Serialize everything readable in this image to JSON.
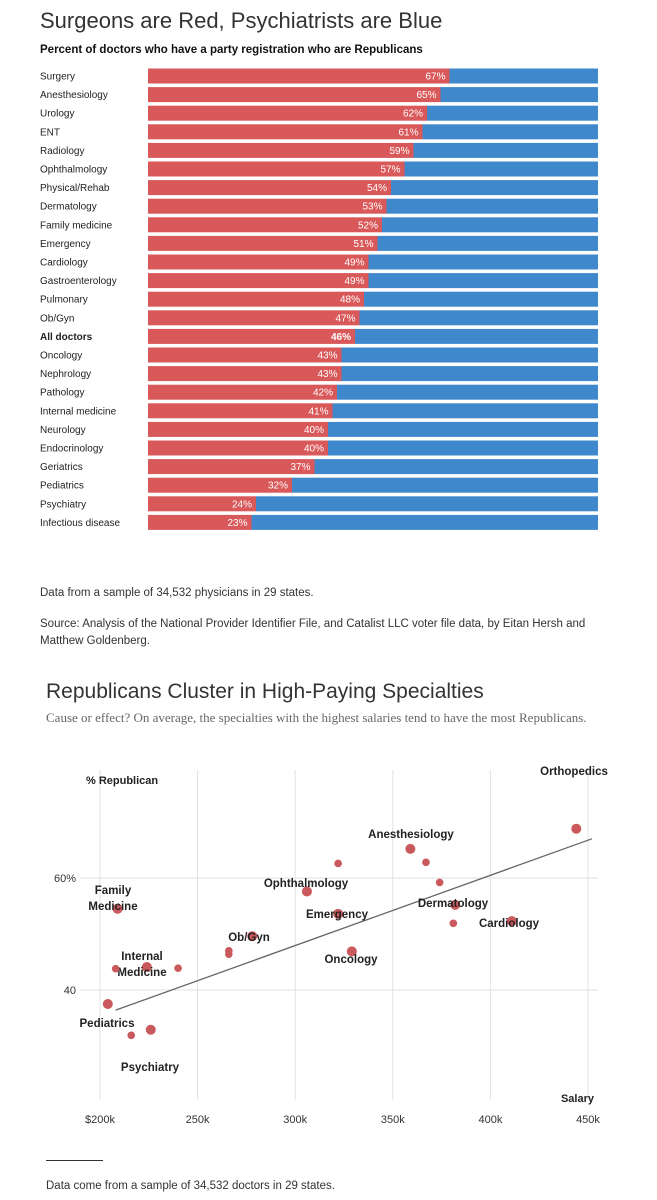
{
  "chart1": {
    "title": "Surgeons are Red, Psychiatrists are Blue",
    "subtitle": "Percent of doctors who have a party registration who are Republicans",
    "colors": {
      "republican": "#d9595a",
      "democrat": "#3f88cb",
      "label": "#ffffff"
    },
    "notes": [
      "Data from a sample of 34,532 physicians in 29 states.",
      "Source: Analysis of the National Provider Identifier File, and Catalist LLC voter file data, by Eitan Hersh and Matthew Goldenberg."
    ]
  },
  "chart2": {
    "title": "Republicans Cluster in High-Paying Specialties",
    "subtitle": "Cause or effect? On average, the specialties with the highest salaries tend to have the most Republicans.",
    "note": "Data come from a sample of 34,532 doctors in 29 states.",
    "colors": {
      "point": "#c9595c",
      "trend": "#666666",
      "grid": "#e2e2e2"
    }
  },
  "chart_data": [
    {
      "type": "bar",
      "stacked": true,
      "title": "Surgeons are Red, Psychiatrists are Blue",
      "subtitle": "Percent of doctors who have a party registration who are Republicans",
      "categories": [
        "Surgery",
        "Anesthesiology",
        "Urology",
        "ENT",
        "Radiology",
        "Ophthalmology",
        "Physical/Rehab",
        "Dermatology",
        "Family medicine",
        "Emergency",
        "Cardiology",
        "Gastroenterology",
        "Pulmonary",
        "Ob/Gyn",
        "All doctors",
        "Oncology",
        "Nephrology",
        "Pathology",
        "Internal medicine",
        "Neurology",
        "Endocrinology",
        "Geriatrics",
        "Pediatrics",
        "Psychiatry",
        "Infectious disease"
      ],
      "values": [
        67,
        65,
        62,
        61,
        59,
        57,
        54,
        53,
        52,
        51,
        49,
        49,
        48,
        47,
        46,
        43,
        43,
        42,
        41,
        40,
        40,
        37,
        32,
        24,
        23
      ],
      "value_labels": [
        "67%",
        "65%",
        "62%",
        "61%",
        "59%",
        "57%",
        "54%",
        "53%",
        "52%",
        "51%",
        "49%",
        "49%",
        "48%",
        "47%",
        "46%",
        "43%",
        "43%",
        "42%",
        "41%",
        "40%",
        "40%",
        "37%",
        "32%",
        "24%",
        "23%"
      ],
      "highlight": "All doctors",
      "xlim": [
        0,
        100
      ]
    },
    {
      "type": "scatter",
      "title": "Republicans Cluster in High-Paying Specialties",
      "subtitle": "Cause or effect? On average, the specialties with the highest salaries tend to have the most Republicans.",
      "xlabel": "Salary",
      "ylabel": "% Republican",
      "xlim": [
        200000,
        450000
      ],
      "ylim": [
        30,
        69
      ],
      "x_ticks": [
        200000,
        250000,
        300000,
        350000,
        400000,
        450000
      ],
      "x_tick_labels": [
        "$200k",
        "250k",
        "300k",
        "350k",
        "400k",
        "450k"
      ],
      "y_ticks": [
        40,
        60
      ],
      "y_tick_labels": [
        "40",
        "60%"
      ],
      "grid": true,
      "trend_line": [
        [
          208000,
          36.4
        ],
        [
          452000,
          67.0
        ]
      ],
      "points": [
        {
          "x": 444000,
          "y": 68.8,
          "label": "Orthopedics"
        },
        {
          "x": 359000,
          "y": 65.2,
          "label": "Anesthesiology"
        },
        {
          "x": 367000,
          "y": 62.8,
          "label": ""
        },
        {
          "x": 322000,
          "y": 62.6,
          "label": ""
        },
        {
          "x": 374000,
          "y": 59.2,
          "label": ""
        },
        {
          "x": 306000,
          "y": 57.6,
          "label": "Ophthalmology"
        },
        {
          "x": 382000,
          "y": 55.2,
          "label": "Dermatology"
        },
        {
          "x": 322000,
          "y": 53.6,
          "label": "Emergency"
        },
        {
          "x": 411000,
          "y": 52.3,
          "label": "Cardiology"
        },
        {
          "x": 381000,
          "y": 51.9,
          "label": ""
        },
        {
          "x": 209000,
          "y": 54.5,
          "label": "Family\nMedicine"
        },
        {
          "x": 278000,
          "y": 49.6,
          "label": "Ob/Gyn"
        },
        {
          "x": 266000,
          "y": 47.0,
          "label": ""
        },
        {
          "x": 266000,
          "y": 46.4,
          "label": ""
        },
        {
          "x": 329000,
          "y": 46.9,
          "label": "Oncology"
        },
        {
          "x": 224000,
          "y": 44.1,
          "label": "Internal\nMedicine"
        },
        {
          "x": 240000,
          "y": 43.9,
          "label": ""
        },
        {
          "x": 208000,
          "y": 43.8,
          "label": ""
        },
        {
          "x": 204000,
          "y": 37.5,
          "label": "Pediatrics"
        },
        {
          "x": 226000,
          "y": 32.9,
          "label": "Psychiatry"
        },
        {
          "x": 216000,
          "y": 31.9,
          "label": ""
        }
      ]
    }
  ]
}
